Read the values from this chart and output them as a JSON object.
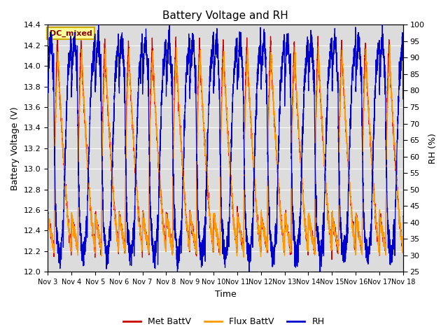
{
  "title": "Battery Voltage and RH",
  "xlabel": "Time",
  "ylabel_left": "Battery Voltage (V)",
  "ylabel_right": "RH (%)",
  "annotation": "DC_mixed",
  "ylim_left": [
    12.0,
    14.4
  ],
  "ylim_right": [
    25,
    100
  ],
  "yticks_left": [
    12.0,
    12.2,
    12.4,
    12.6,
    12.8,
    13.0,
    13.2,
    13.4,
    13.6,
    13.8,
    14.0,
    14.2,
    14.4
  ],
  "yticks_right": [
    25,
    30,
    35,
    40,
    45,
    50,
    55,
    60,
    65,
    70,
    75,
    80,
    85,
    90,
    95,
    100
  ],
  "xtick_labels": [
    "Nov 3",
    "Nov 4",
    "Nov 5",
    "Nov 6",
    "Nov 7",
    "Nov 8",
    "Nov 9",
    "Nov 10",
    "Nov 11",
    "Nov 12",
    "Nov 13",
    "Nov 14",
    "Nov 15",
    "Nov 16",
    "Nov 17",
    "Nov 18"
  ],
  "colors": {
    "met_battv": "#cc0000",
    "flux_battv": "#ff9900",
    "rh": "#0000cc",
    "background": "#dcdcdc",
    "annotation_bg": "#ffff99",
    "annotation_border": "#ccaa00"
  },
  "legend": [
    "Met BattV",
    "Flux BattV",
    "RH"
  ],
  "n_days": 15,
  "seed": 42
}
